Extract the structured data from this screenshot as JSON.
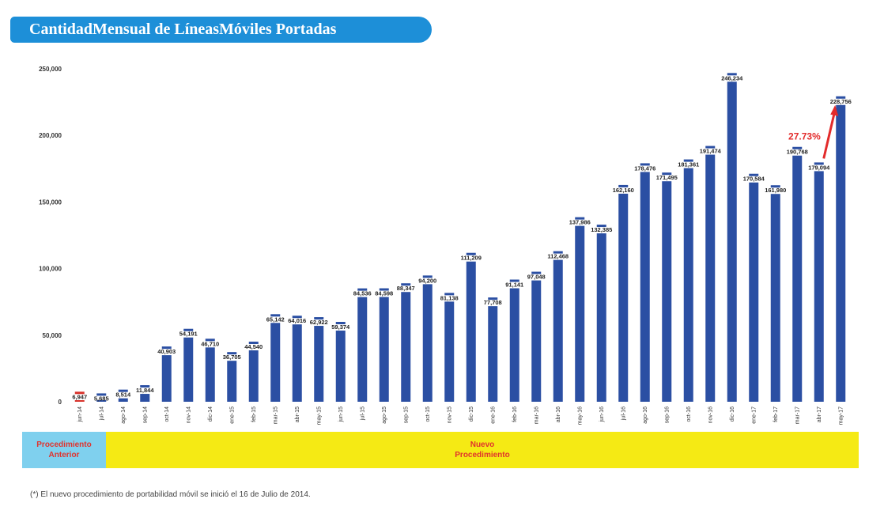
{
  "title": "CantidadMensual de LíneasMóviles Portadas",
  "chart_data": {
    "type": "bar",
    "title": "CantidadMensual de LíneasMóviles Portadas",
    "xlabel": "",
    "ylabel": "",
    "ylim": [
      0,
      250000
    ],
    "yticks": [
      "0",
      "50,000",
      "100,000",
      "150,000",
      "200,000",
      "250,000"
    ],
    "ytick_values": [
      0,
      50000,
      100000,
      150000,
      200000,
      250000
    ],
    "grid": false,
    "categories": [
      "jun-14",
      "jul-14",
      "ago-14",
      "sep-14",
      "oct-14",
      "nov-14",
      "dic-14",
      "ene-15",
      "feb-15",
      "mar-15",
      "abr-15",
      "may-15",
      "jun-15",
      "jul-15",
      "ago-15",
      "sep-15",
      "oct-15",
      "nov-15",
      "dic-15",
      "ene-16",
      "feb-16",
      "mar-16",
      "abr-16",
      "may-16",
      "jun-16",
      "jul-16",
      "ago-16",
      "sep-16",
      "oct-16",
      "nov-16",
      "dic-16",
      "ene-17",
      "feb-17",
      "mar-17",
      "abr-17",
      "may-17"
    ],
    "values": [
      6947,
      5685,
      8514,
      11844,
      40903,
      54191,
      46710,
      36705,
      44540,
      65142,
      64016,
      62922,
      59374,
      84536,
      84598,
      88347,
      94200,
      81138,
      111209,
      77708,
      91141,
      97048,
      112468,
      137986,
      132385,
      162160,
      178476,
      171495,
      181361,
      191474,
      246234,
      170584,
      161980,
      190768,
      179094,
      228756
    ],
    "data_labels": [
      "6,947",
      "5,685",
      "8,514",
      "11,844",
      "40,903",
      "54,191",
      "46,710",
      "36,705",
      "44,540",
      "65,142",
      "64,016",
      "62,922",
      "59,374",
      "84,536",
      "84,598",
      "88,347",
      "94,200",
      "81,138",
      "111,209",
      "77,708",
      "91,141",
      "97,048",
      "112,468",
      "137,986",
      "132,385",
      "162,160",
      "178,476",
      "171,495",
      "181,361",
      "191,474",
      "246,234",
      "170,584",
      "161,980",
      "190,768",
      "179,094",
      "228,756"
    ],
    "bar_colors": {
      "default": "#2b4fa3",
      "first": "#d8322b"
    },
    "annotation": {
      "text": "27.73%",
      "color": "#e32b2b"
    }
  },
  "bands": {
    "left": [
      "Procedimiento",
      "Anterior"
    ],
    "right": [
      "Nuevo",
      "Procedimiento"
    ]
  },
  "footnote": "(*) El nuevo procedimiento de portabilidad móvil se inició el 16 de Julio de 2014."
}
